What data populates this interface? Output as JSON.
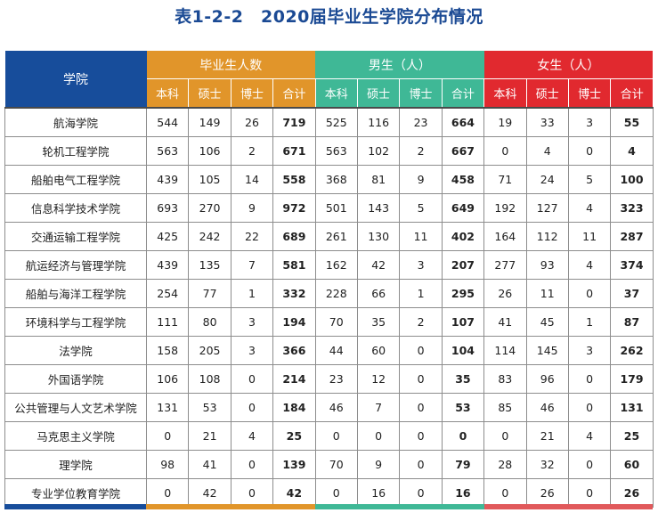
{
  "title": "表1-2-2　2020届毕业生学院分布情况",
  "header": {
    "college": "学院",
    "groups": [
      {
        "label": "毕业生人数",
        "color": "#e1952a"
      },
      {
        "label": "男生（人）",
        "color": "#3fb896"
      },
      {
        "label": "女生（人）",
        "color": "#e1292f"
      }
    ],
    "subcols": [
      "本科",
      "硕士",
      "博士",
      "合计"
    ]
  },
  "colors": {
    "college_header": "#174d9b",
    "total": "#e1952a",
    "male": "#3fb896",
    "female": "#e1292f"
  },
  "rows": [
    {
      "name": "航海学院",
      "total": [
        "544",
        "149",
        "26",
        "719"
      ],
      "male": [
        "525",
        "116",
        "23",
        "664"
      ],
      "female": [
        "19",
        "33",
        "3",
        "55"
      ]
    },
    {
      "name": "轮机工程学院",
      "total": [
        "563",
        "106",
        "2",
        "671"
      ],
      "male": [
        "563",
        "102",
        "2",
        "667"
      ],
      "female": [
        "0",
        "4",
        "0",
        "4"
      ]
    },
    {
      "name": "船舶电气工程学院",
      "total": [
        "439",
        "105",
        "14",
        "558"
      ],
      "male": [
        "368",
        "81",
        "9",
        "458"
      ],
      "female": [
        "71",
        "24",
        "5",
        "100"
      ]
    },
    {
      "name": "信息科学技术学院",
      "total": [
        "693",
        "270",
        "9",
        "972"
      ],
      "male": [
        "501",
        "143",
        "5",
        "649"
      ],
      "female": [
        "192",
        "127",
        "4",
        "323"
      ]
    },
    {
      "name": "交通运输工程学院",
      "total": [
        "425",
        "242",
        "22",
        "689"
      ],
      "male": [
        "261",
        "130",
        "11",
        "402"
      ],
      "female": [
        "164",
        "112",
        "11",
        "287"
      ]
    },
    {
      "name": "航运经济与管理学院",
      "total": [
        "439",
        "135",
        "7",
        "581"
      ],
      "male": [
        "162",
        "42",
        "3",
        "207"
      ],
      "female": [
        "277",
        "93",
        "4",
        "374"
      ]
    },
    {
      "name": "船舶与海洋工程学院",
      "total": [
        "254",
        "77",
        "1",
        "332"
      ],
      "male": [
        "228",
        "66",
        "1",
        "295"
      ],
      "female": [
        "26",
        "11",
        "0",
        "37"
      ]
    },
    {
      "name": "环境科学与工程学院",
      "total": [
        "111",
        "80",
        "3",
        "194"
      ],
      "male": [
        "70",
        "35",
        "2",
        "107"
      ],
      "female": [
        "41",
        "45",
        "1",
        "87"
      ]
    },
    {
      "name": "法学院",
      "total": [
        "158",
        "205",
        "3",
        "366"
      ],
      "male": [
        "44",
        "60",
        "0",
        "104"
      ],
      "female": [
        "114",
        "145",
        "3",
        "262"
      ]
    },
    {
      "name": "外国语学院",
      "total": [
        "106",
        "108",
        "0",
        "214"
      ],
      "male": [
        "23",
        "12",
        "0",
        "35"
      ],
      "female": [
        "83",
        "96",
        "0",
        "179"
      ]
    },
    {
      "name": "公共管理与人文艺术学院",
      "total": [
        "131",
        "53",
        "0",
        "184"
      ],
      "male": [
        "46",
        "7",
        "0",
        "53"
      ],
      "female": [
        "85",
        "46",
        "0",
        "131"
      ]
    },
    {
      "name": "马克思主义学院",
      "total": [
        "0",
        "21",
        "4",
        "25"
      ],
      "male": [
        "0",
        "0",
        "0",
        "0"
      ],
      "female": [
        "0",
        "21",
        "4",
        "25"
      ]
    },
    {
      "name": "理学院",
      "total": [
        "98",
        "41",
        "0",
        "139"
      ],
      "male": [
        "70",
        "9",
        "0",
        "79"
      ],
      "female": [
        "28",
        "32",
        "0",
        "60"
      ]
    },
    {
      "name": "专业学位教育学院",
      "total": [
        "0",
        "42",
        "0",
        "42"
      ],
      "male": [
        "0",
        "16",
        "0",
        "16"
      ],
      "female": [
        "0",
        "26",
        "0",
        "26"
      ]
    }
  ]
}
